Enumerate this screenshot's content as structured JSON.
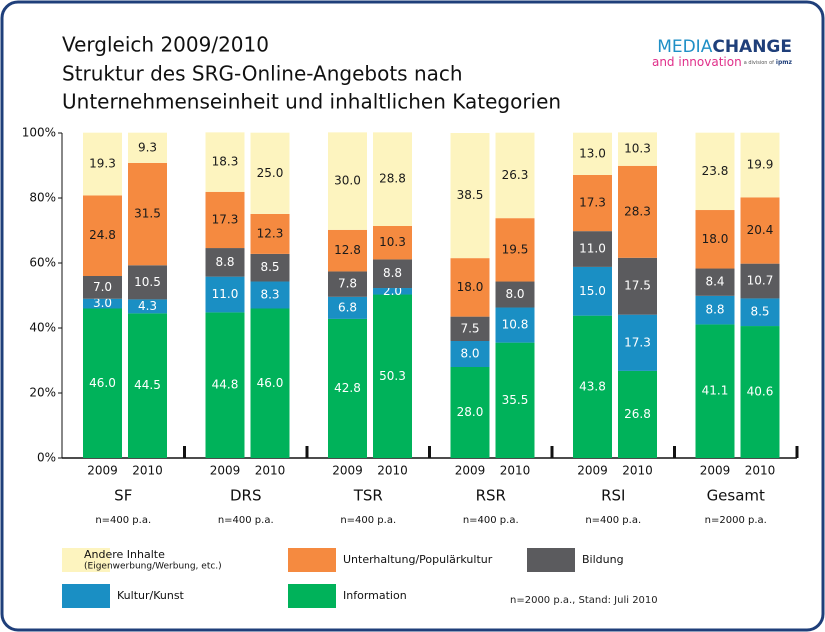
{
  "chart_data": {
    "type": "stacked_bar",
    "title": "Vergleich 2009/2010",
    "subtitle": [
      "Struktur des SRG-Online-Angebots nach",
      "Unternehmenseinheit und inhaltlichen Kategorien"
    ],
    "logo": {
      "main1": "MEDIA",
      "main2": "CHANGE",
      "line2": "and innovation",
      "small": "a division of",
      "brand": "ipmz"
    },
    "categories": [
      "2009",
      "2010",
      "2009",
      "2010",
      "2009",
      "2010",
      "2009",
      "2010",
      "2009",
      "2010",
      "2009",
      "2010"
    ],
    "groups": [
      {
        "name": "SF",
        "note": "n=400 p.a."
      },
      {
        "name": "DRS",
        "note": "n=400 p.a."
      },
      {
        "name": "TSR",
        "note": "n=400 p.a."
      },
      {
        "name": "RSR",
        "note": "n=400 p.a."
      },
      {
        "name": "RSI",
        "note": "n=400 p.a."
      },
      {
        "name": "Gesamt",
        "note": "n=2000 p.a."
      }
    ],
    "series": [
      {
        "name": "Information",
        "color": "#00b25a",
        "label_color": "#ffffff",
        "values": [
          46.0,
          44.5,
          44.8,
          46.0,
          42.8,
          50.3,
          28.0,
          35.5,
          43.8,
          26.8,
          41.1,
          40.6
        ],
        "value_labels": [
          "46.0",
          "44.5",
          "44.8",
          "46.0",
          "42.8",
          "50.3",
          "28.0",
          "35.5",
          "43.8",
          "26.8",
          "41.1",
          "40.6"
        ]
      },
      {
        "name": "Kultur/Kunst",
        "color": "#1a8fc4",
        "label_color": "#ffffff",
        "values": [
          3.0,
          4.3,
          11.0,
          8.3,
          6.8,
          2.0,
          8.0,
          10.8,
          15.0,
          17.3,
          8.8,
          8.5
        ],
        "value_labels": [
          "3.0",
          "4.3",
          "11.0",
          "8.3",
          "6.8",
          "2.0",
          "8.0",
          "10.8",
          "15.0",
          "17.3",
          "8.8",
          "8.5"
        ]
      },
      {
        "name": "Bildung",
        "color": "#5b5b5e",
        "label_color": "#ffffff",
        "values": [
          7.0,
          10.5,
          8.8,
          8.5,
          7.8,
          8.8,
          7.5,
          8.0,
          11.0,
          17.5,
          8.4,
          10.7
        ],
        "value_labels": [
          "7.0",
          "10.5",
          "8.8",
          "8.5",
          "7.8",
          "8.8",
          "7.5",
          "8.0",
          "11.0",
          "17.5",
          "8.4",
          "10.7"
        ]
      },
      {
        "name": "Unterhaltung/Populärkultur",
        "color": "#f58a40",
        "label_color": "#1a1a1a",
        "values": [
          24.8,
          31.5,
          17.3,
          12.3,
          12.8,
          10.3,
          18.0,
          19.5,
          17.3,
          28.3,
          18.0,
          20.4
        ],
        "value_labels": [
          "24.8",
          "31.5",
          "17.3",
          "12.3",
          "12.8",
          "10.3",
          "18.0",
          "19.5",
          "17.3",
          "28.3",
          "18.0",
          "20.4"
        ]
      },
      {
        "name": "Andere Inhalte",
        "name_note": "(Eigenwerbung/Werbung, etc.)",
        "color": "#fdf4bf",
        "label_color": "#1a1a1a",
        "values": [
          19.3,
          9.3,
          18.3,
          25.0,
          30.0,
          28.8,
          38.5,
          26.3,
          13.0,
          10.3,
          23.8,
          19.9
        ],
        "value_labels": [
          "19.3",
          "9.3",
          "18.3",
          "25.0",
          "30.0",
          "28.8",
          "38.5",
          "26.3",
          "13.0",
          "10.3",
          "23.8",
          "19.9"
        ]
      }
    ],
    "ylim": [
      0,
      100
    ],
    "yticks": [
      {
        "value": 0,
        "label": "0%"
      },
      {
        "value": 20,
        "label": "20%"
      },
      {
        "value": 40,
        "label": "40%"
      },
      {
        "value": 60,
        "label": "60%"
      },
      {
        "value": 80,
        "label": "80%"
      },
      {
        "value": 100,
        "label": "100%"
      }
    ],
    "footnote": "n=2000 p.a., Stand: Juli 2010"
  }
}
